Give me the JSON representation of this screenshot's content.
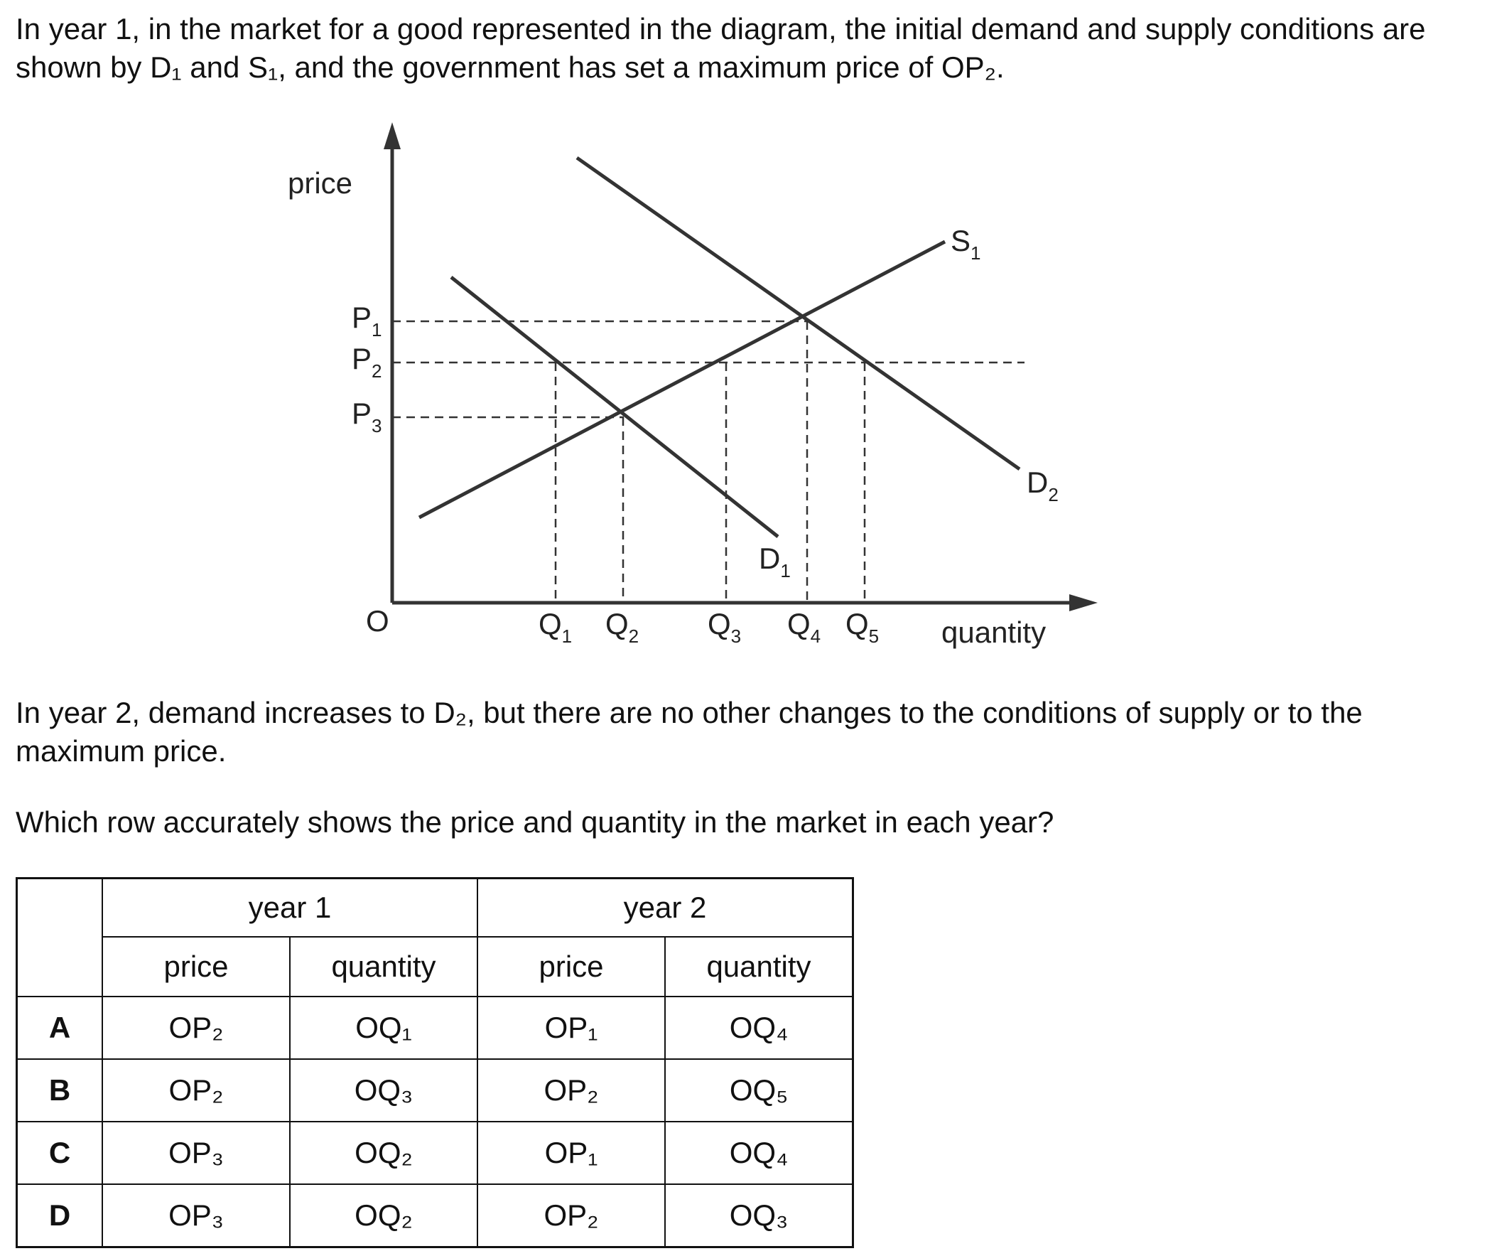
{
  "question": {
    "intro": "In year 1, in the market for a good represented in the diagram, the initial demand and supply conditions are shown by D₁ and S₁, and the government has set a maximum price of OP₂.",
    "change": "In year 2, demand increases to D₂, but there are no other changes to the conditions of supply or to the maximum price.",
    "prompt": "Which row accurately shows the price and quantity in the market in each year?"
  },
  "diagram": {
    "y_axis_label": "price",
    "x_axis_label": "quantity",
    "origin_label": "O",
    "price_levels": [
      {
        "base": "P",
        "sub": "1"
      },
      {
        "base": "P",
        "sub": "2"
      },
      {
        "base": "P",
        "sub": "3"
      }
    ],
    "quantity_levels": [
      {
        "base": "Q",
        "sub": "1"
      },
      {
        "base": "Q",
        "sub": "2"
      },
      {
        "base": "Q",
        "sub": "3"
      },
      {
        "base": "Q",
        "sub": "4"
      },
      {
        "base": "Q",
        "sub": "5"
      }
    ],
    "curves": {
      "s1": {
        "base": "S",
        "sub": "1"
      },
      "d1": {
        "base": "D",
        "sub": "1"
      },
      "d2": {
        "base": "D",
        "sub": "2"
      }
    }
  },
  "table": {
    "group_headers": [
      "year 1",
      "year 2"
    ],
    "column_headers": [
      "price",
      "quantity",
      "price",
      "quantity"
    ],
    "rows": [
      {
        "option": "A",
        "cells": [
          "OP₂",
          "OQ₁",
          "OP₁",
          "OQ₄"
        ]
      },
      {
        "option": "B",
        "cells": [
          "OP₂",
          "OQ₃",
          "OP₂",
          "OQ₅"
        ]
      },
      {
        "option": "C",
        "cells": [
          "OP₃",
          "OQ₂",
          "OP₁",
          "OQ₄"
        ]
      },
      {
        "option": "D",
        "cells": [
          "OP₃",
          "OQ₂",
          "OP₂",
          "OQ₃"
        ]
      }
    ]
  }
}
